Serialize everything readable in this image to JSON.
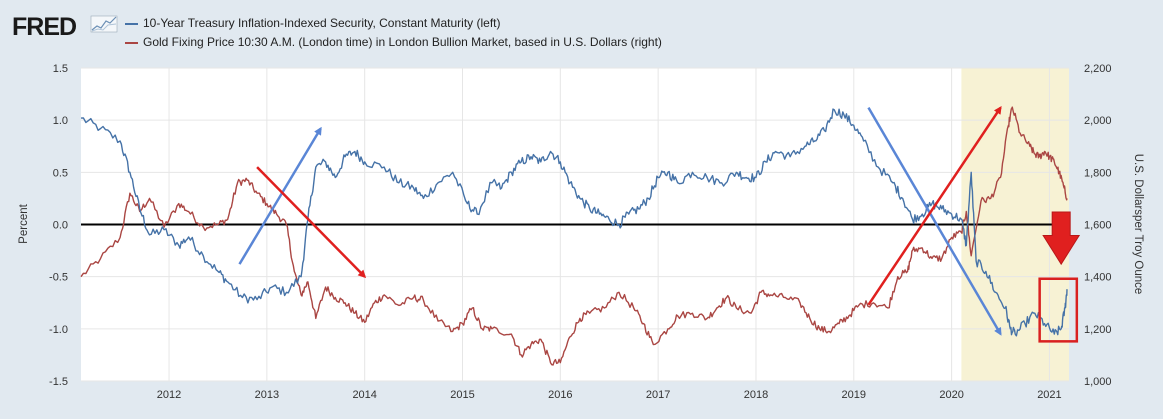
{
  "header": {
    "logo_text": "FRED",
    "logo_icon": "chart-spark-icon"
  },
  "chart_data": {
    "type": "line",
    "series": [
      {
        "name": "10-Year Treasury Inflation-Indexed Security, Constant Maturity (left)",
        "axis": "left",
        "color": "#4572a7",
        "points": [
          [
            2011.1,
            1.02
          ],
          [
            2011.3,
            0.92
          ],
          [
            2011.5,
            0.8
          ],
          [
            2011.6,
            0.5
          ],
          [
            2011.7,
            0.15
          ],
          [
            2011.8,
            -0.1
          ],
          [
            2011.95,
            -0.05
          ],
          [
            2012.1,
            -0.2
          ],
          [
            2012.2,
            -0.12
          ],
          [
            2012.35,
            -0.3
          ],
          [
            2012.5,
            -0.45
          ],
          [
            2012.6,
            -0.55
          ],
          [
            2012.75,
            -0.7
          ],
          [
            2012.9,
            -0.72
          ],
          [
            2013.05,
            -0.6
          ],
          [
            2013.2,
            -0.65
          ],
          [
            2013.35,
            -0.5
          ],
          [
            2013.42,
            0.05
          ],
          [
            2013.5,
            0.55
          ],
          [
            2013.6,
            0.6
          ],
          [
            2013.7,
            0.45
          ],
          [
            2013.8,
            0.65
          ],
          [
            2013.9,
            0.7
          ],
          [
            2014.0,
            0.6
          ],
          [
            2014.2,
            0.55
          ],
          [
            2014.35,
            0.4
          ],
          [
            2014.5,
            0.35
          ],
          [
            2014.6,
            0.25
          ],
          [
            2014.75,
            0.4
          ],
          [
            2014.9,
            0.5
          ],
          [
            2015.05,
            0.2
          ],
          [
            2015.15,
            0.1
          ],
          [
            2015.3,
            0.4
          ],
          [
            2015.4,
            0.35
          ],
          [
            2015.5,
            0.5
          ],
          [
            2015.6,
            0.6
          ],
          [
            2015.7,
            0.65
          ],
          [
            2015.8,
            0.6
          ],
          [
            2015.9,
            0.7
          ],
          [
            2016.0,
            0.6
          ],
          [
            2016.1,
            0.4
          ],
          [
            2016.2,
            0.25
          ],
          [
            2016.3,
            0.15
          ],
          [
            2016.4,
            0.1
          ],
          [
            2016.5,
            0.05
          ],
          [
            2016.6,
            0.0
          ],
          [
            2016.7,
            0.1
          ],
          [
            2016.8,
            0.15
          ],
          [
            2016.9,
            0.25
          ],
          [
            2017.0,
            0.45
          ],
          [
            2017.1,
            0.5
          ],
          [
            2017.2,
            0.4
          ],
          [
            2017.35,
            0.5
          ],
          [
            2017.5,
            0.45
          ],
          [
            2017.65,
            0.4
          ],
          [
            2017.8,
            0.5
          ],
          [
            2017.9,
            0.45
          ],
          [
            2018.0,
            0.45
          ],
          [
            2018.1,
            0.6
          ],
          [
            2018.2,
            0.7
          ],
          [
            2018.35,
            0.65
          ],
          [
            2018.5,
            0.75
          ],
          [
            2018.6,
            0.8
          ],
          [
            2018.7,
            0.9
          ],
          [
            2018.8,
            1.1
          ],
          [
            2018.9,
            1.05
          ],
          [
            2019.0,
            0.95
          ],
          [
            2019.1,
            0.8
          ],
          [
            2019.25,
            0.55
          ],
          [
            2019.4,
            0.4
          ],
          [
            2019.5,
            0.25
          ],
          [
            2019.6,
            0.05
          ],
          [
            2019.7,
            0.1
          ],
          [
            2019.8,
            0.2
          ],
          [
            2019.9,
            0.15
          ],
          [
            2020.0,
            0.1
          ],
          [
            2020.1,
            0.05
          ],
          [
            2020.15,
            -0.2
          ],
          [
            2020.2,
            0.5
          ],
          [
            2020.25,
            -0.35
          ],
          [
            2020.35,
            -0.45
          ],
          [
            2020.45,
            -0.65
          ],
          [
            2020.55,
            -0.8
          ],
          [
            2020.6,
            -1.0
          ],
          [
            2020.65,
            -1.05
          ],
          [
            2020.75,
            -0.95
          ],
          [
            2020.85,
            -0.85
          ],
          [
            2020.95,
            -0.95
          ],
          [
            2021.05,
            -1.05
          ],
          [
            2021.12,
            -1.0
          ],
          [
            2021.16,
            -0.8
          ],
          [
            2021.18,
            -0.62
          ]
        ]
      },
      {
        "name": "Gold Fixing Price 10:30 A.M. (London time) in London Bullion Market, based in U.S. Dollars (right)",
        "axis": "right",
        "color": "#aa4643",
        "points": [
          [
            2011.1,
            1400
          ],
          [
            2011.3,
            1470
          ],
          [
            2011.5,
            1550
          ],
          [
            2011.6,
            1720
          ],
          [
            2011.7,
            1650
          ],
          [
            2011.8,
            1700
          ],
          [
            2011.95,
            1590
          ],
          [
            2012.1,
            1680
          ],
          [
            2012.2,
            1650
          ],
          [
            2012.35,
            1590
          ],
          [
            2012.5,
            1600
          ],
          [
            2012.6,
            1620
          ],
          [
            2012.7,
            1760
          ],
          [
            2012.8,
            1770
          ],
          [
            2012.9,
            1720
          ],
          [
            2013.0,
            1680
          ],
          [
            2013.1,
            1640
          ],
          [
            2013.2,
            1600
          ],
          [
            2013.28,
            1420
          ],
          [
            2013.35,
            1330
          ],
          [
            2013.42,
            1380
          ],
          [
            2013.5,
            1240
          ],
          [
            2013.6,
            1360
          ],
          [
            2013.7,
            1320
          ],
          [
            2013.8,
            1300
          ],
          [
            2013.9,
            1260
          ],
          [
            2014.0,
            1225
          ],
          [
            2014.1,
            1300
          ],
          [
            2014.2,
            1330
          ],
          [
            2014.35,
            1290
          ],
          [
            2014.5,
            1320
          ],
          [
            2014.6,
            1310
          ],
          [
            2014.75,
            1230
          ],
          [
            2014.9,
            1190
          ],
          [
            2015.0,
            1220
          ],
          [
            2015.1,
            1280
          ],
          [
            2015.2,
            1200
          ],
          [
            2015.3,
            1200
          ],
          [
            2015.5,
            1180
          ],
          [
            2015.6,
            1100
          ],
          [
            2015.7,
            1140
          ],
          [
            2015.8,
            1160
          ],
          [
            2015.9,
            1070
          ],
          [
            2016.0,
            1070
          ],
          [
            2016.1,
            1170
          ],
          [
            2016.2,
            1240
          ],
          [
            2016.3,
            1260
          ],
          [
            2016.45,
            1280
          ],
          [
            2016.6,
            1340
          ],
          [
            2016.75,
            1280
          ],
          [
            2016.85,
            1220
          ],
          [
            2016.95,
            1140
          ],
          [
            2017.1,
            1200
          ],
          [
            2017.2,
            1250
          ],
          [
            2017.35,
            1260
          ],
          [
            2017.5,
            1240
          ],
          [
            2017.6,
            1280
          ],
          [
            2017.7,
            1320
          ],
          [
            2017.8,
            1280
          ],
          [
            2017.95,
            1260
          ],
          [
            2018.05,
            1340
          ],
          [
            2018.15,
            1330
          ],
          [
            2018.3,
            1320
          ],
          [
            2018.45,
            1300
          ],
          [
            2018.55,
            1240
          ],
          [
            2018.65,
            1200
          ],
          [
            2018.75,
            1190
          ],
          [
            2018.85,
            1220
          ],
          [
            2018.95,
            1250
          ],
          [
            2019.05,
            1290
          ],
          [
            2019.2,
            1300
          ],
          [
            2019.35,
            1280
          ],
          [
            2019.45,
            1400
          ],
          [
            2019.55,
            1420
          ],
          [
            2019.6,
            1500
          ],
          [
            2019.7,
            1510
          ],
          [
            2019.8,
            1470
          ],
          [
            2019.9,
            1470
          ],
          [
            2020.0,
            1550
          ],
          [
            2020.1,
            1570
          ],
          [
            2020.15,
            1650
          ],
          [
            2020.2,
            1480
          ],
          [
            2020.3,
            1690
          ],
          [
            2020.4,
            1700
          ],
          [
            2020.5,
            1780
          ],
          [
            2020.58,
            1980
          ],
          [
            2020.62,
            2050
          ],
          [
            2020.7,
            1950
          ],
          [
            2020.8,
            1900
          ],
          [
            2020.85,
            1870
          ],
          [
            2020.9,
            1860
          ],
          [
            2020.95,
            1880
          ],
          [
            2021.0,
            1860
          ],
          [
            2021.05,
            1840
          ],
          [
            2021.1,
            1800
          ],
          [
            2021.15,
            1740
          ],
          [
            2021.18,
            1700
          ]
        ]
      }
    ],
    "x_range": [
      2011.1,
      2021.2
    ],
    "x_ticks": [
      2012,
      2013,
      2014,
      2015,
      2016,
      2017,
      2018,
      2019,
      2020,
      2021
    ],
    "x_tick_labels": [
      "2012",
      "2013",
      "2014",
      "2015",
      "2016",
      "2017",
      "2018",
      "2019",
      "2020",
      "2021"
    ],
    "y_left": {
      "label": "Percent",
      "range": [
        -1.5,
        1.5
      ],
      "ticks": [
        -1.5,
        -1.0,
        -0.5,
        0.0,
        0.5,
        1.0,
        1.5
      ],
      "tick_labels": [
        "-1.5",
        "-1.0",
        "-0.5",
        "0.0",
        "0.5",
        "1.0",
        "1.5"
      ]
    },
    "y_right": {
      "label": "U.S. Dollarsper Troy Ounce",
      "range": [
        1000,
        2200
      ],
      "ticks": [
        1000,
        1200,
        1400,
        1600,
        1800,
        2000,
        2200
      ],
      "tick_labels": [
        "1,000",
        "1,200",
        "1,400",
        "1,600",
        "1,800",
        "2,000",
        "2,200"
      ]
    },
    "zero_line": 0.0,
    "recession_shading": [
      {
        "start": 2020.1,
        "end": 2021.2
      }
    ],
    "annotations": {
      "arrows": [
        {
          "color": "#5a86d6",
          "from": [
            2012.72,
            -0.38
          ],
          "to": [
            2013.55,
            0.92
          ]
        },
        {
          "color": "#e0201f",
          "from": [
            2012.9,
            0.55
          ],
          "to": [
            2014.0,
            -0.5
          ]
        },
        {
          "color": "#5a86d6",
          "from": [
            2019.15,
            1.12
          ],
          "to": [
            2020.5,
            -1.05
          ]
        },
        {
          "color": "#e0201f",
          "from": [
            2019.15,
            -0.77
          ],
          "to": [
            2020.5,
            1.12
          ]
        }
      ],
      "highlight_box": {
        "color": "#d92020",
        "x0": 2020.9,
        "x1": 2021.28,
        "y0": -1.12,
        "y1": -0.52
      },
      "block_arrow": {
        "color": "#e0201f",
        "x": 2021.12,
        "y_top": 0.12,
        "y_bottom": -0.38
      }
    },
    "grid": true,
    "legend_position": "top-left"
  }
}
